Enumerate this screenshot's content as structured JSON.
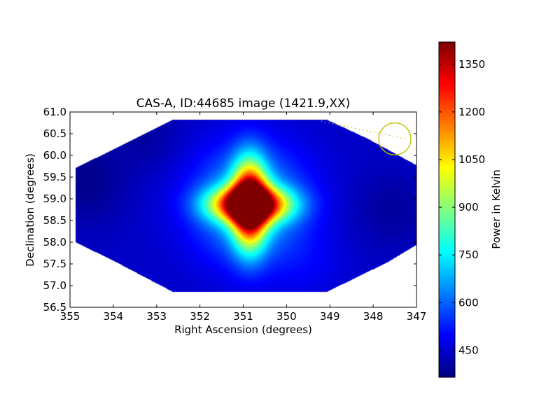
{
  "chart_data": {
    "type": "heatmap",
    "title": "CAS-A, ID:44685 image (1421.9,XX)",
    "xlabel": "Right Ascension (degrees)",
    "ylabel": "Declination (degrees)",
    "xlim": [
      355,
      347
    ],
    "ylim": [
      56.5,
      61.0
    ],
    "x_ticks": [
      355,
      354,
      353,
      352,
      351,
      350,
      349,
      348,
      347
    ],
    "y_ticks": [
      56.5,
      57.0,
      57.5,
      58.0,
      58.5,
      59.0,
      59.5,
      60.0,
      60.5,
      61.0
    ],
    "x_tick_labels": [
      "355",
      "354",
      "353",
      "352",
      "351",
      "350",
      "349",
      "348",
      "347"
    ],
    "y_tick_labels": [
      "56.5",
      "57.0",
      "57.5",
      "58.0",
      "58.5",
      "59.0",
      "59.5",
      "60.0",
      "60.5",
      "61.0"
    ],
    "colormap": "jet",
    "value_range": [
      365,
      1420
    ],
    "source_peak": {
      "ra": 350.85,
      "dec": 58.87,
      "value": 1410
    },
    "background_level": 440,
    "beam_marker": {
      "ra": 347.5,
      "dec": 60.38,
      "radius_deg": 0.37
    },
    "colorbar": {
      "label": "Power in Kelvin",
      "ticks": [
        450,
        600,
        750,
        900,
        1050,
        1200,
        1350
      ],
      "tick_labels": [
        "450",
        "600",
        "750",
        "900",
        "1050",
        "1200",
        "1350"
      ]
    }
  }
}
